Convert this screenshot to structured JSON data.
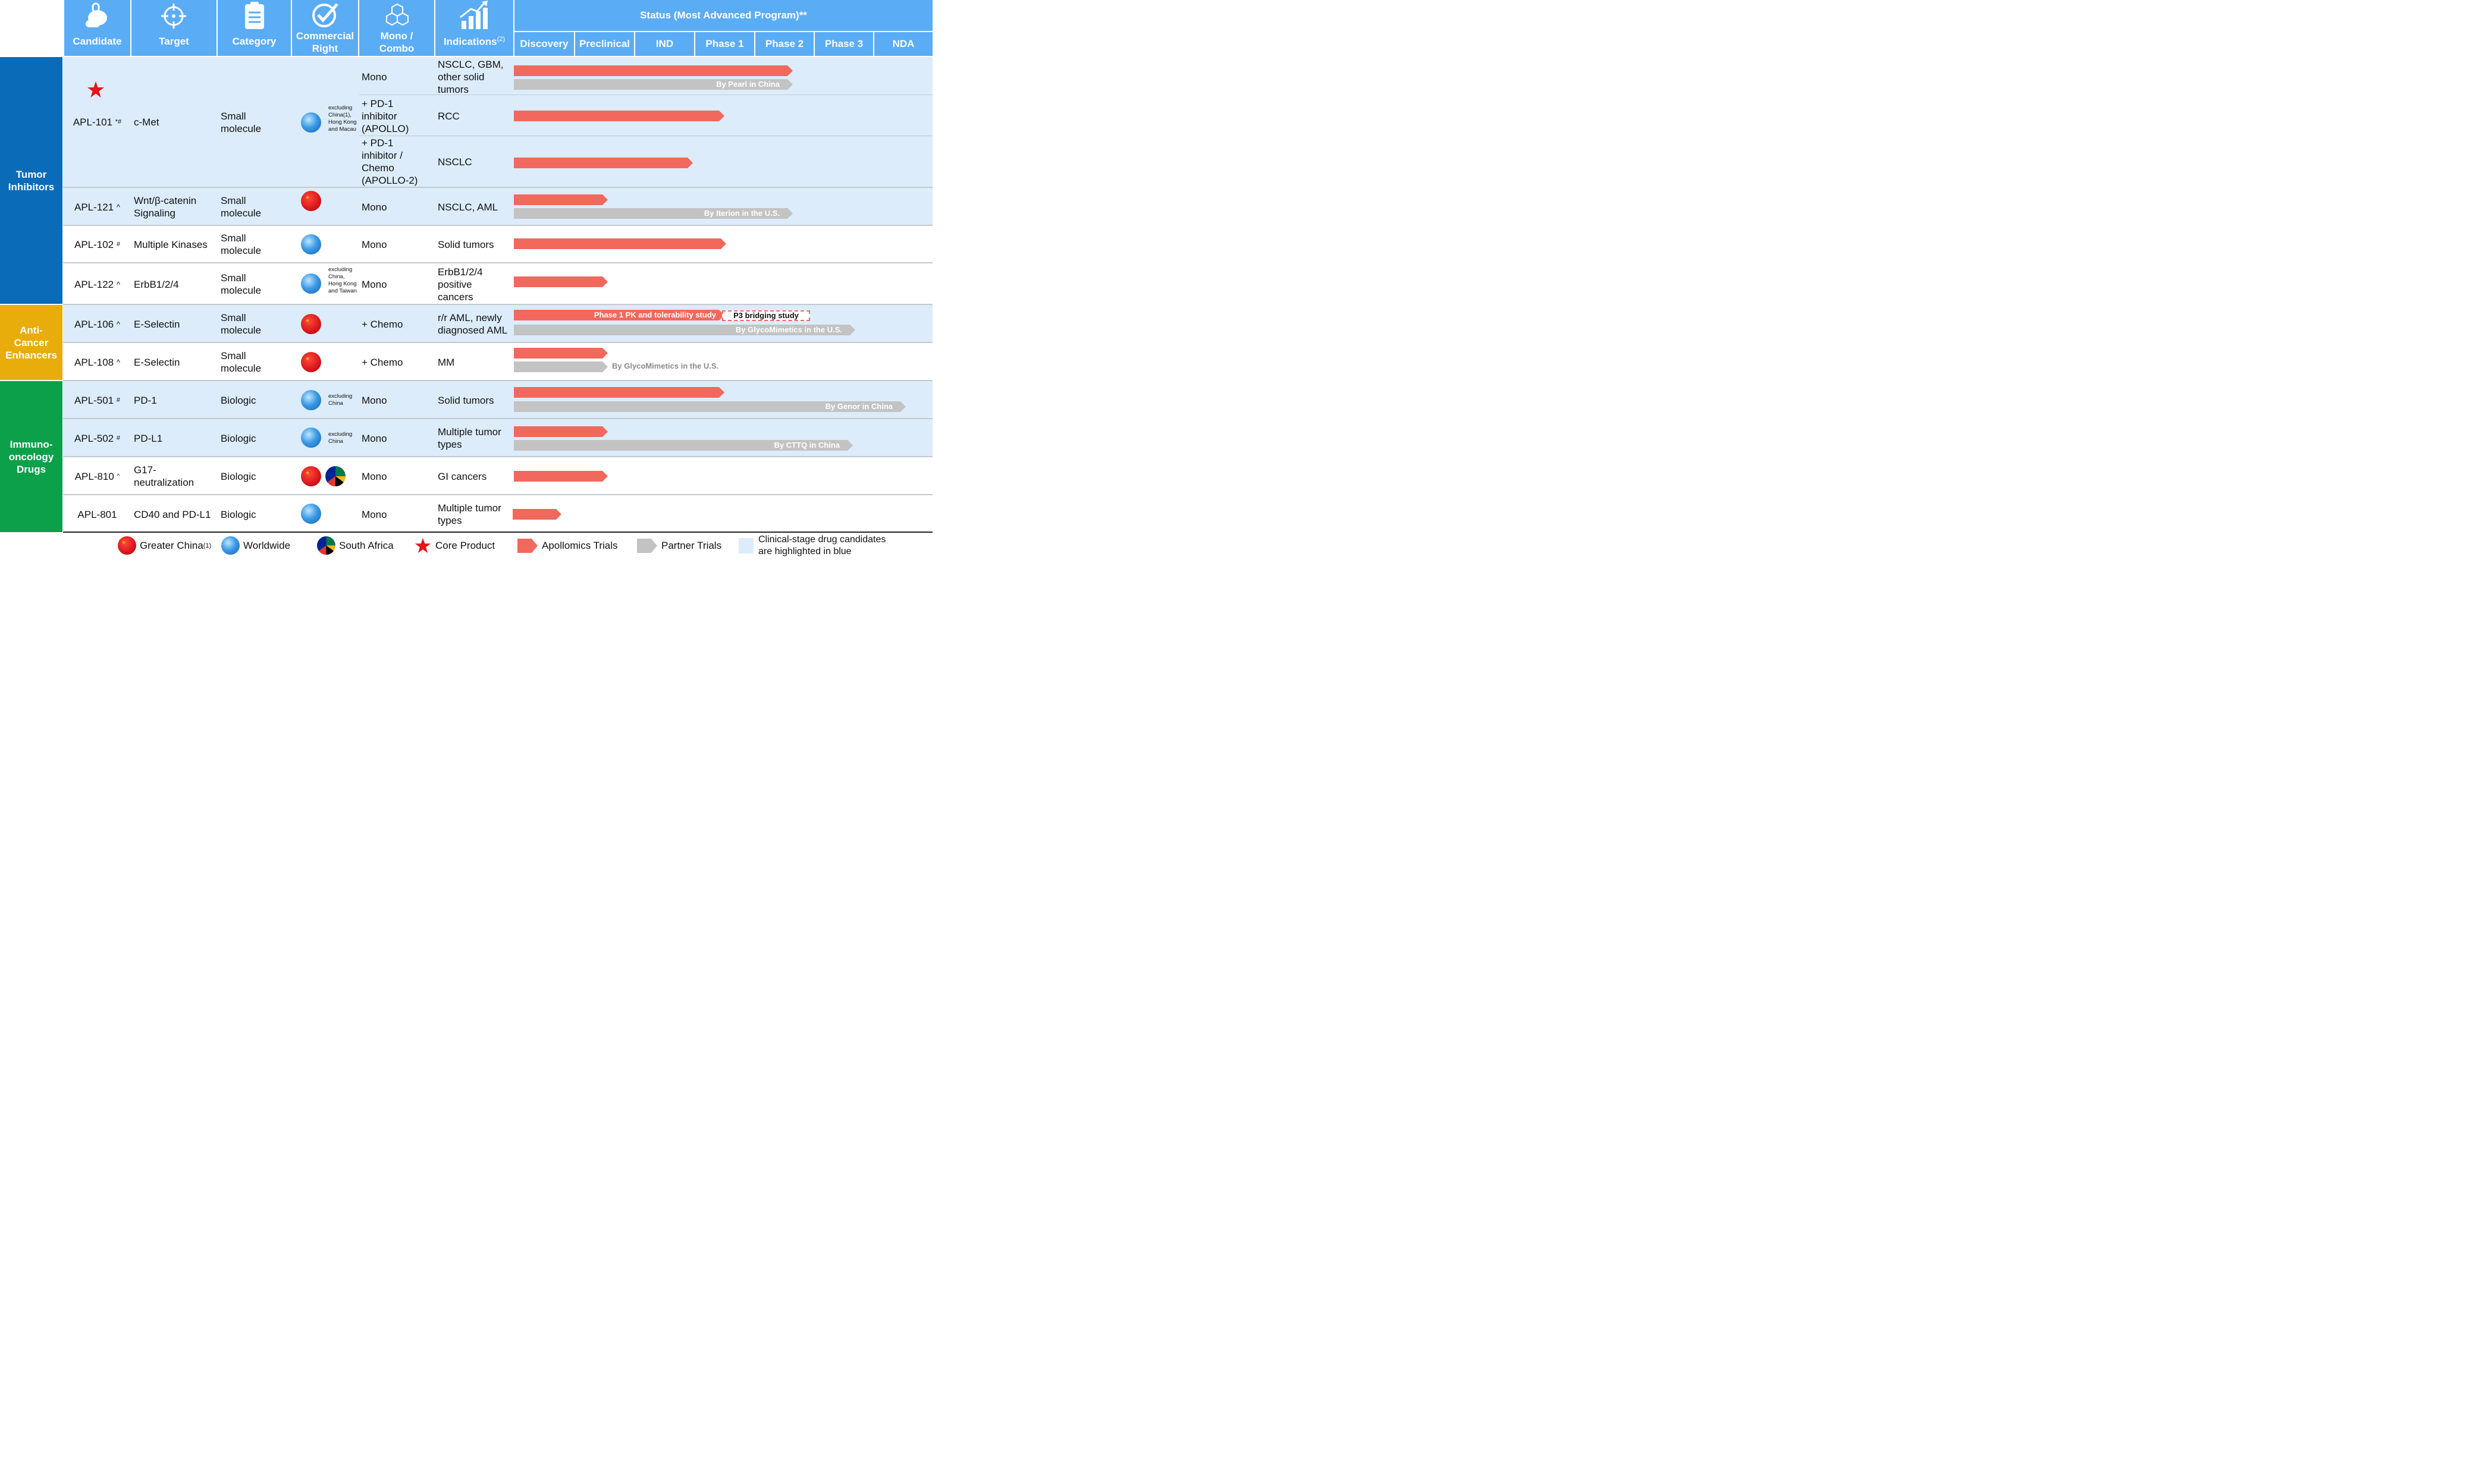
{
  "header": {
    "candidate": "Candidate",
    "target": "Target",
    "category": "Category",
    "commercial_1": "Commercial",
    "commercial_2": "Right",
    "mono_1": "Mono /",
    "mono_2": "Combo",
    "indications": "Indications",
    "indications_sup": "(2)",
    "status_title": "Status (Most Advanced Program)**",
    "phases": [
      "Discovery",
      "Preclinical",
      "IND",
      "Phase 1",
      "Phase 2",
      "Phase 3",
      "NDA"
    ]
  },
  "groups": {
    "tumor": "Tumor Inhibitors",
    "anticancer": "Anti-Cancer Enhancers",
    "immuno": "Immuno-oncology Drugs"
  },
  "rows": [
    {
      "candidate": "APL-101",
      "mark": "*#",
      "target": "c-Met",
      "category": "Small molecule",
      "right_note": "excluding China(1), Hong Kong and Macau",
      "sub": [
        {
          "combo": "Mono",
          "indication": "NSCLC, GBM, other solid tumors",
          "partner": "By Pearl in China"
        },
        {
          "combo": "+ PD-1 inhibitor (APOLLO)",
          "indication": "RCC"
        },
        {
          "combo": "+ PD-1 inhibitor / Chemo (APOLLO-2)",
          "indication": "NSCLC"
        }
      ]
    },
    {
      "candidate": "APL-121",
      "mark": "^",
      "target": "Wnt/β-catenin Signaling",
      "category": "Small molecule",
      "combo": "Mono",
      "indication": "NSCLC, AML",
      "partner": "By Iterion in the U.S."
    },
    {
      "candidate": "APL-102",
      "mark": "#",
      "target": "Multiple Kinases",
      "category": "Small molecule",
      "combo": "Mono",
      "indication": "Solid tumors"
    },
    {
      "candidate": "APL-122",
      "mark": "^",
      "target": "ErbB1/2/4",
      "category": "Small molecule",
      "right_note": "excluding China, Hong Kong and Taiwan",
      "combo": "Mono",
      "indication": "ErbB1/2/4 positive cancers"
    },
    {
      "candidate": "APL-106",
      "mark": "^",
      "target": "E-Selectin",
      "category": "Small molecule",
      "combo": "+ Chemo",
      "indication": "r/r AML, newly diagnosed AML",
      "bar_text": "Phase 1 PK and tolerability study",
      "dashed_text": "P3 bridging study",
      "partner": "By GlycoMimetics in the U.S."
    },
    {
      "candidate": "APL-108",
      "mark": "^",
      "target": "E-Selectin",
      "category": "Small molecule",
      "combo": "+ Chemo",
      "indication": "MM",
      "partner": "By GlycoMimetics in the U.S."
    },
    {
      "candidate": "APL-501",
      "mark": "#",
      "target": "PD-1",
      "category": "Biologic",
      "right_note": "excluding China",
      "combo": "Mono",
      "indication": "Solid tumors",
      "partner": "By Genor in China"
    },
    {
      "candidate": "APL-502",
      "mark": "#",
      "target": "PD-L1",
      "category": "Biologic",
      "right_note": "excluding China",
      "combo": "Mono",
      "indication": "Multiple tumor types",
      "partner": "By CTTQ in China"
    },
    {
      "candidate": "APL-810",
      "mark": "^",
      "target": "G17-neutralization",
      "category": "Biologic",
      "combo": "Mono",
      "indication": "GI cancers"
    },
    {
      "candidate": "APL-801",
      "mark": "",
      "target": "CD40 and PD-L1",
      "category": "Biologic",
      "combo": "Mono",
      "indication": "Multiple tumor types"
    }
  ],
  "legend": {
    "greater_china": "Greater China",
    "greater_china_sup": "(1)",
    "worldwide": "Worldwide",
    "south_africa": "South Africa",
    "core_product": "Core Product",
    "apollomics_trials": "Apollomics Trials",
    "partner_trials": "Partner Trials",
    "highlight_1": "Clinical-stage drug candidates",
    "highlight_2": "are highlighted in blue"
  },
  "colors": {
    "header_blue": "#5aacf5",
    "row_highlight": "#dcecfa",
    "tumor_group": "#0a6bb8",
    "anticancer_group": "#e8ad0a",
    "immuno_group": "#0da04b",
    "apollomics_bar": "#f0695c",
    "partner_bar": "#c3c3c3"
  },
  "icons": [
    "pill-icon",
    "target-icon",
    "clipboard-icon",
    "checkmark-icon",
    "molecule-icon",
    "growth-chart-icon",
    "china-flag-icon",
    "globe-icon",
    "south-africa-flag-icon",
    "red-star-icon"
  ]
}
